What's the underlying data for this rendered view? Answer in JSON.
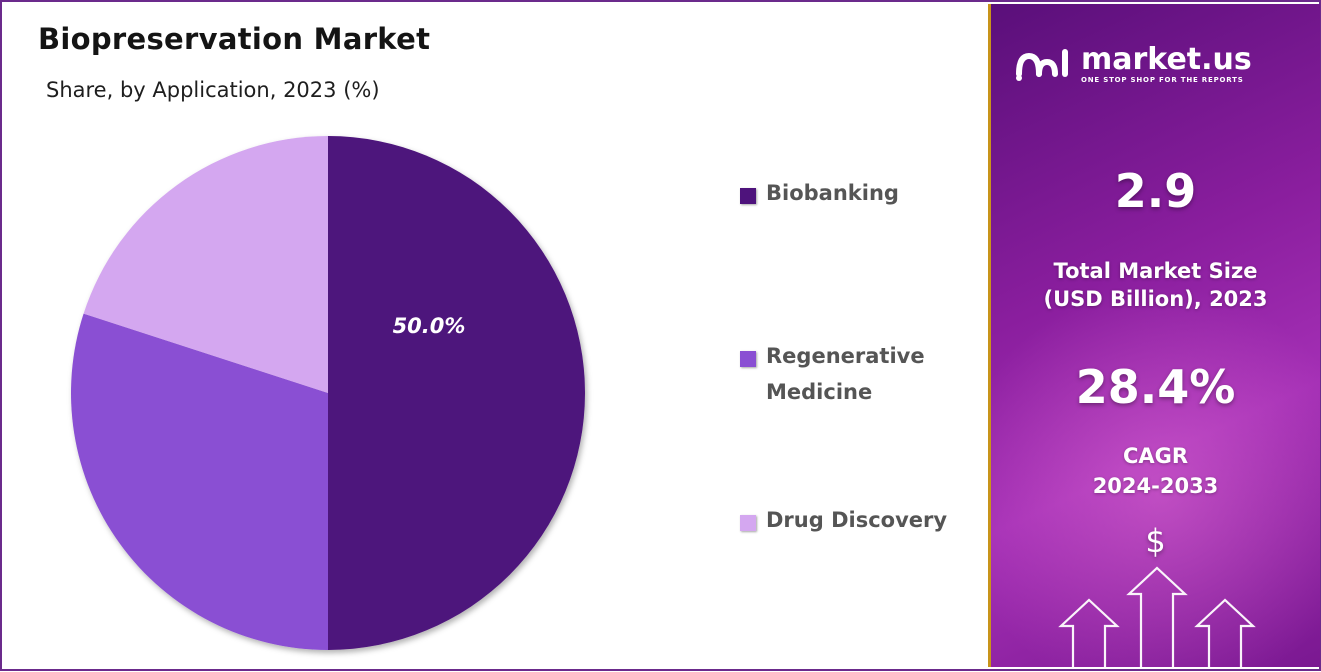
{
  "title": "Biopreservation Market",
  "subtitle": "Share, by Application, 2023 (%)",
  "chart_data": {
    "type": "pie",
    "title": "Biopreservation Market",
    "subtitle": "Share, by Application, 2023 (%)",
    "categories": [
      "Biobanking",
      "Regenerative Medicine",
      "Drug Discovery"
    ],
    "values": [
      50.0,
      30.0,
      20.0
    ],
    "data_labels": [
      "50.0%",
      "",
      ""
    ],
    "colors": [
      "#4e137c",
      "#8a4fd3",
      "#d4a7f0"
    ],
    "legend_position": "right"
  },
  "legend": {
    "items": [
      {
        "label": "Biobanking",
        "color": "#4e137c"
      },
      {
        "label": "Regenerative\nMedicine",
        "color": "#8a4fd3"
      },
      {
        "label": "Drug Discovery",
        "color": "#d4a7f0"
      }
    ]
  },
  "panel": {
    "logo_name": "market.us",
    "logo_tagline": "ONE STOP SHOP FOR THE REPORTS",
    "market_size_value": "2.9",
    "market_size_label_line1": "Total Market Size",
    "market_size_label_line2": "(USD Billion), 2023",
    "cagr_value": "28.4%",
    "cagr_label_line1": "CAGR",
    "cagr_label_line2": "2024-2033",
    "currency_symbol": "$",
    "icons": [
      "market-us-logo-icon",
      "dollar-icon",
      "growth-arrows-icon"
    ]
  }
}
